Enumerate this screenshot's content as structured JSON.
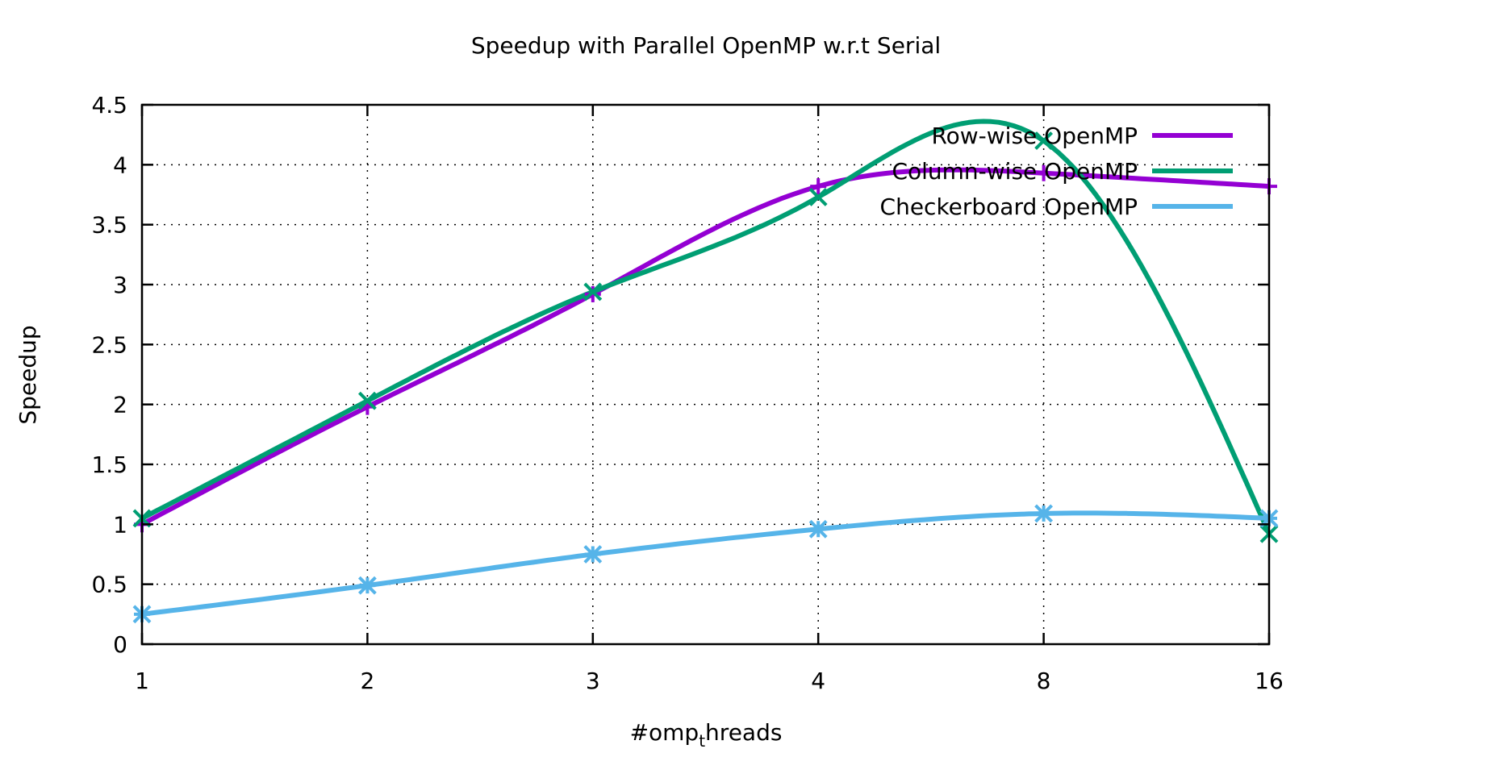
{
  "chart_data": {
    "type": "line",
    "title": "Speedup with Parallel OpenMP w.r.t Serial",
    "xlabel_main": "#omp",
    "xlabel_sub": "t",
    "xlabel_rest": "hreads",
    "ylabel": "Speedup",
    "categories": [
      "1",
      "2",
      "3",
      "4",
      "8",
      "16"
    ],
    "ylim": [
      0,
      4.5
    ],
    "yticks": [
      "0",
      "0.5",
      "1",
      "1.5",
      "2",
      "2.5",
      "3",
      "3.5",
      "4",
      "4.5"
    ],
    "grid": true,
    "legend_position": "top-right",
    "smoothing": "spline",
    "series": [
      {
        "name": "Row-wise OpenMP",
        "color": "#9400d3",
        "marker": "plus",
        "values": [
          1.0,
          1.98,
          2.92,
          3.82,
          3.93,
          3.82
        ]
      },
      {
        "name": "Column-wise OpenMP",
        "color": "#009e73",
        "marker": "cross",
        "values": [
          1.05,
          2.03,
          2.94,
          3.73,
          4.2,
          0.92
        ]
      },
      {
        "name": "Checkerboard OpenMP",
        "color": "#56b4e9",
        "marker": "star",
        "values": [
          0.25,
          0.49,
          0.75,
          0.96,
          1.09,
          1.05
        ]
      }
    ]
  }
}
